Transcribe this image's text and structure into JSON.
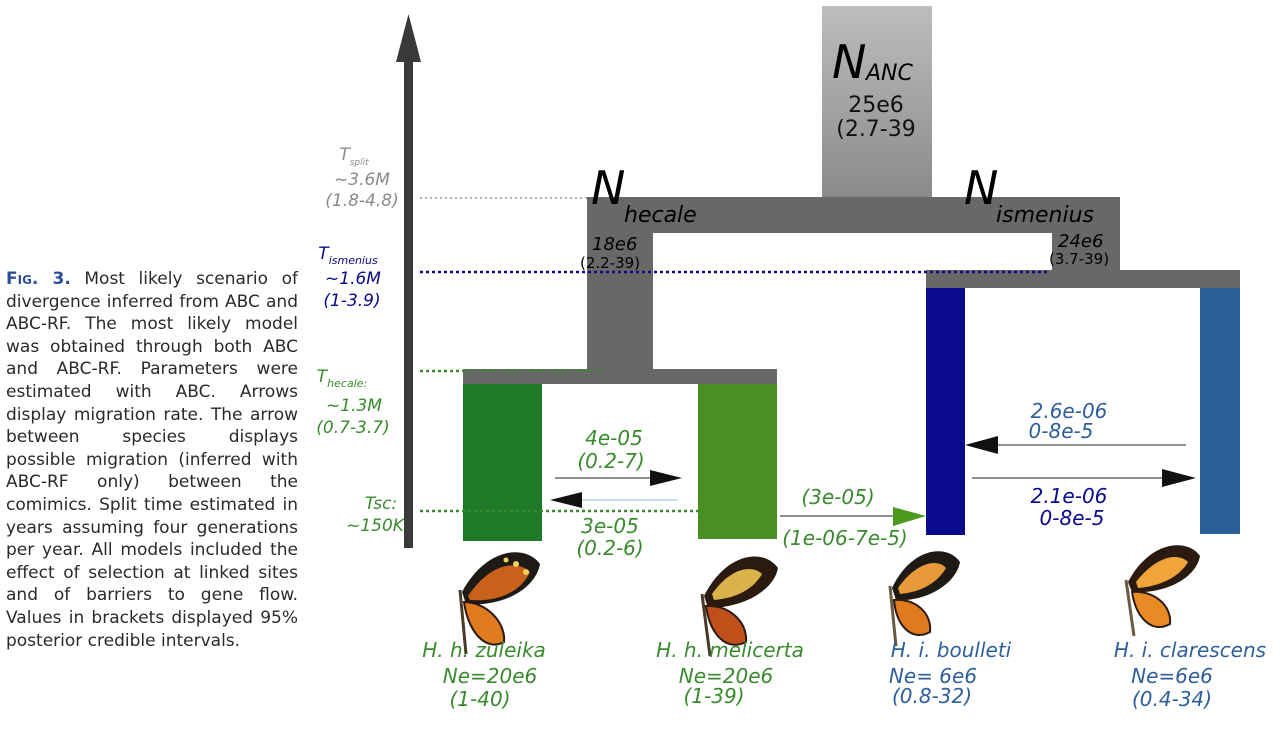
{
  "caption": {
    "label": "Fig. 3.",
    "text": "Most likely scenario of divergence inferred from ABC and ABC-RF. The most likely model was obtained through both ABC and ABC-RF. Parameters were estimated with ABC. Arrows display migration rate. The arrow between species displays possible migration (inferred with ABC-RF only) between the comimics. Split time estimated in years assuming four generations per year. All models included the effect of selection at linked sites and of barriers to gene flow. Values in brackets displayed 95% posterior credible intervals."
  },
  "colors": {
    "ancestral_gray": "#a0a0a0",
    "dark_gray": "#686868",
    "zuleika_green": "#1e7a28",
    "melicerta_green": "#4a8f22",
    "boulleti_navy": "#0a0a8c",
    "clarescens_blue": "#2a5f9a",
    "label_green": "#3a8a2e",
    "label_navy": "#0a0a8c",
    "label_blue": "#2f5f9a",
    "label_gray": "#8a8a8a"
  },
  "time_axis": {
    "t_split": {
      "symbol": "T",
      "sub": "split",
      "value": "~3.6M",
      "ci": "(1.8-4.8)"
    },
    "t_ismenius": {
      "symbol": "T",
      "sub": "ismenius",
      "value": "~1.6M",
      "ci": "(1-3.9)"
    },
    "t_hecale": {
      "symbol": "T",
      "sub": "hecale:",
      "value": "~1.3M",
      "ci": "(0.7-3.7)"
    },
    "tsc": {
      "label": "Tsc:",
      "value": "~150K"
    }
  },
  "nodes": {
    "ancestral": {
      "symbol": "N",
      "sub": "ANC",
      "value": "25e6",
      "ci": "(2.7-39"
    },
    "hecale": {
      "symbol": "N",
      "sub": "hecale",
      "value": "18e6",
      "ci": "(2.2-39)"
    },
    "ismenius": {
      "symbol": "N",
      "sub": "ismenius",
      "value": "24e6",
      "ci": "(3.7-39)"
    }
  },
  "migration": {
    "zuleika_melicerta_top": {
      "rate": "4e-05",
      "ci": "(0.2-7)"
    },
    "zuleika_melicerta_bottom": {
      "rate": "3e-05",
      "ci": "(0.2-6)"
    },
    "melicerta_boulleti": {
      "rate": "(3e-05)",
      "ci": "(1e-06-7e-5)"
    },
    "clarescens_to_boulleti": {
      "rate": "2.6e-06",
      "ci": "0-8e-5"
    },
    "boulleti_to_clarescens": {
      "rate": "2.1e-06",
      "ci": "0-8e-5"
    }
  },
  "species": [
    {
      "name": "H. h. zuleika",
      "ne": "Ne=20e6",
      "ci": "(1-40)"
    },
    {
      "name": "H. h. melicerta",
      "ne": "Ne=20e6",
      "ci": "(1-39)"
    },
    {
      "name": "H. i. boulleti",
      "ne": "Ne= 6e6",
      "ci": "(0.8-32)"
    },
    {
      "name": "H. i. clarescens",
      "ne": "Ne=6e6",
      "ci": "(0.4-34)"
    }
  ]
}
